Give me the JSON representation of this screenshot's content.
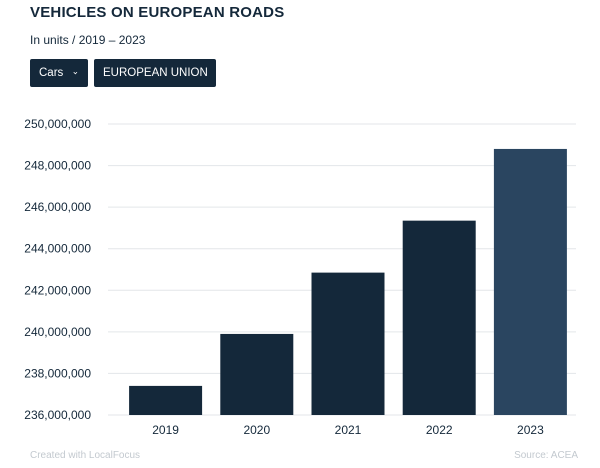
{
  "title": "VEHICLES ON EUROPEAN ROADS",
  "subtitle": "In units / 2019 – 2023",
  "filters": {
    "vehicle_type": "Cars",
    "region": "EUROPEAN UNION"
  },
  "footer": {
    "credit": "Created with LocalFocus",
    "source": "Source: ACEA"
  },
  "colors": {
    "bar": "#14283a",
    "bar_highlight": "#2a4560",
    "grid": "#e3e6e9",
    "axis_text": "#14283a"
  },
  "chart_data": {
    "type": "bar",
    "categories": [
      "2019",
      "2020",
      "2021",
      "2022",
      "2023"
    ],
    "values": [
      237400000,
      239900000,
      242850000,
      245350000,
      248800000
    ],
    "highlight_index": 4,
    "ylim": [
      236000000,
      250000000
    ],
    "yticks": [
      236000000,
      238000000,
      240000000,
      242000000,
      244000000,
      246000000,
      248000000,
      250000000
    ],
    "ytick_labels": [
      "236,000,000",
      "238,000,000",
      "240,000,000",
      "242,000,000",
      "244,000,000",
      "246,000,000",
      "248,000,000",
      "250,000,000"
    ],
    "grid": true,
    "xlabel": "",
    "ylabel": ""
  }
}
